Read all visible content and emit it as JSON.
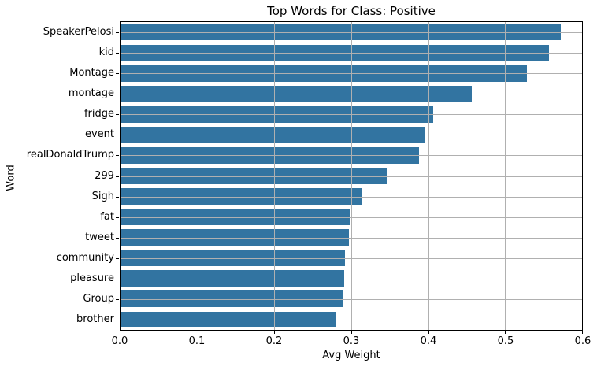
{
  "chart_data": {
    "type": "bar",
    "orientation": "horizontal",
    "title": "Top Words for Class: Positive",
    "xlabel": "Avg Weight",
    "ylabel": "Word",
    "categories": [
      "SpeakerPelosi",
      "kid",
      "Montage",
      "montage",
      "fridge",
      "event",
      "realDonaldTrump",
      "299",
      "Sigh",
      "fat",
      "tweet",
      "community",
      "pleasure",
      "Group",
      "brother"
    ],
    "values": [
      0.572,
      0.557,
      0.528,
      0.457,
      0.406,
      0.396,
      0.388,
      0.347,
      0.314,
      0.298,
      0.297,
      0.292,
      0.291,
      0.289,
      0.281
    ],
    "xlim": [
      0.0,
      0.6
    ],
    "xticks": [
      0.0,
      0.1,
      0.2,
      0.3,
      0.4,
      0.5,
      0.6
    ],
    "xtick_labels": [
      "0.0",
      "0.1",
      "0.2",
      "0.3",
      "0.4",
      "0.5",
      "0.6"
    ],
    "grid": true,
    "grid_position": "above-bars",
    "legend": "none",
    "colors": {
      "bar_fill": "#3274a1",
      "grid_line": "#b0b0b0",
      "axis_spine": "#000000",
      "text": "#000000",
      "background": "#ffffff"
    }
  }
}
